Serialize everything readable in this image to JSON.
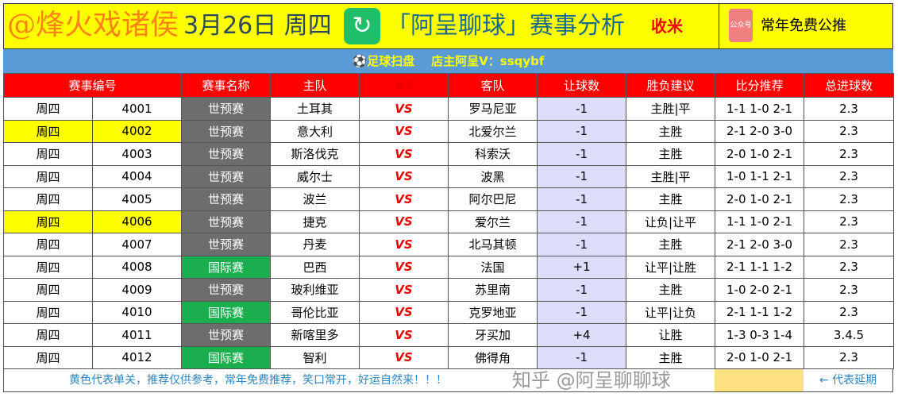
{
  "header": {
    "date": "3月26日 周四",
    "watermark": "@烽火戏诸侯",
    "title": "「阿呈聊球」赛事分析",
    "badge": "收米",
    "gzh_label": "公众号",
    "free_text": "常年免费公推",
    "logo_icon": "refresh-circle-icon"
  },
  "subbar": "⚽足球扫盘    店主阿呈V：ssqybf",
  "columns": [
    "赛事编号",
    "赛事名称",
    "主队",
    "VS",
    "客队",
    "让球数",
    "胜负建议",
    "比分推荐",
    "总进球数"
  ],
  "rows": [
    {
      "day": "周四",
      "no": "4001",
      "league": "世预赛",
      "home": "土耳其",
      "away": "罗马尼亚",
      "hcp": "-1",
      "pick": "主胜|平",
      "score": "1-1 1-0 2-1",
      "goals": "2.3",
      "hl": false,
      "lt": "g1"
    },
    {
      "day": "周四",
      "no": "4002",
      "league": "世预赛",
      "home": "意大利",
      "away": "北爱尔兰",
      "hcp": "-1",
      "pick": "主胜",
      "score": "2-1 2-0 3-0",
      "goals": "2.3",
      "hl": true,
      "lt": "g1"
    },
    {
      "day": "周四",
      "no": "4003",
      "league": "世预赛",
      "home": "斯洛伐克",
      "away": "科索沃",
      "hcp": "-1",
      "pick": "主胜",
      "score": "2-0 1-0 2-1",
      "goals": "2.3",
      "hl": false,
      "lt": "g1"
    },
    {
      "day": "周四",
      "no": "4004",
      "league": "世预赛",
      "home": "威尔士",
      "away": "波黑",
      "hcp": "-1",
      "pick": "主胜|平",
      "score": "1-0 1-1 2-1",
      "goals": "2.3",
      "hl": false,
      "lt": "g1"
    },
    {
      "day": "周四",
      "no": "4005",
      "league": "世预赛",
      "home": "波兰",
      "away": "阿尔巴尼",
      "hcp": "-1",
      "pick": "主胜",
      "score": "2-0 1-0 2-1",
      "goals": "2.3",
      "hl": false,
      "lt": "g1"
    },
    {
      "day": "周四",
      "no": "4006",
      "league": "世预赛",
      "home": "捷克",
      "away": "爱尔兰",
      "hcp": "-1",
      "pick": "让负|让平",
      "score": "1-1 1-0 2-1",
      "goals": "2.3",
      "hl": true,
      "lt": "g1"
    },
    {
      "day": "周四",
      "no": "4007",
      "league": "世预赛",
      "home": "丹麦",
      "away": "北马其顿",
      "hcp": "-1",
      "pick": "主胜",
      "score": "2-1 2-0 3-0",
      "goals": "2.3",
      "hl": false,
      "lt": "g1"
    },
    {
      "day": "周四",
      "no": "4008",
      "league": "国际赛",
      "home": "巴西",
      "away": "法国",
      "hcp": "+1",
      "pick": "让平|让胜",
      "score": "2-1 1-1 1-2",
      "goals": "2.3",
      "hl": false,
      "lt": "g2"
    },
    {
      "day": "周四",
      "no": "4009",
      "league": "世预赛",
      "home": "玻利维亚",
      "away": "苏里南",
      "hcp": "-1",
      "pick": "主胜",
      "score": "1-0 2-0 2-1",
      "goals": "2.3",
      "hl": false,
      "lt": "g1"
    },
    {
      "day": "周四",
      "no": "4010",
      "league": "国际赛",
      "home": "哥伦比亚",
      "away": "克罗地亚",
      "hcp": "-1",
      "pick": "让平|让负",
      "score": "2-1 1-1 1-2",
      "goals": "2.3",
      "hl": false,
      "lt": "g2"
    },
    {
      "day": "周四",
      "no": "4011",
      "league": "世预赛",
      "home": "新喀里多",
      "away": "牙买加",
      "hcp": "+4",
      "pick": "让胜",
      "score": "1-3 0-3 1-4",
      "goals": "3.4.5",
      "hl": false,
      "lt": "g1"
    },
    {
      "day": "周四",
      "no": "4012",
      "league": "国际赛",
      "home": "智利",
      "away": "佛得角",
      "hcp": "-1",
      "pick": "主胜",
      "score": "2-0 1-0 2-1",
      "goals": "2.3",
      "hl": false,
      "lt": "g2"
    }
  ],
  "footer": {
    "note": "黄色代表单关，推荐仅供参考，常年免费推荐，笑口常开，好运自然来！！！",
    "delay": "← 代表延期"
  },
  "zhihu_watermark": "知乎 @阿呈聊聊球"
}
